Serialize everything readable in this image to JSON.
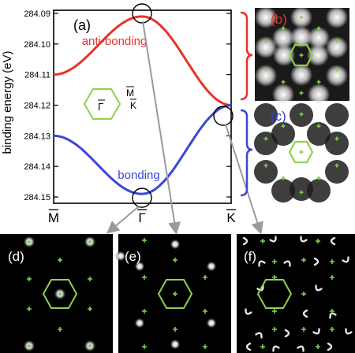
{
  "figure": {
    "panel_a_label": "(a)",
    "panel_b_label": "(b)",
    "panel_c_label": "(c)",
    "panel_d_label": "(d)",
    "panel_e_label": "(e)",
    "panel_f_label": "(f)",
    "inset_labels": {
      "gamma": "Γ",
      "m": "M",
      "k": "K"
    }
  },
  "colors": {
    "anti_bonding": "#e8322a",
    "bonding": "#3b46d6",
    "hexagon": "#8fd14f",
    "marker": "#7bd34a",
    "arrow": "#9a9a9a",
    "label_b": "#d93a2a",
    "label_c": "#3140cc"
  },
  "chart_data": {
    "type": "line",
    "ylabel": "binding energy (eV)",
    "xlabel": "",
    "x_ticks": [
      "M",
      "Γ",
      "K"
    ],
    "y_ticks": [
      284.09,
      284.1,
      284.11,
      284.12,
      284.13,
      284.14,
      284.15
    ],
    "y_tick_labels": [
      "284.09",
      "284.10",
      "284.11",
      "284.12",
      "284.13",
      "284.14",
      "284.15"
    ],
    "ylim": [
      284.09,
      284.15
    ],
    "y_inverted": true,
    "grid": false,
    "series": [
      {
        "name": "anti-bonding",
        "x": [
          "M",
          "Γ",
          "K"
        ],
        "values": [
          284.11,
          284.091,
          284.12
        ]
      },
      {
        "name": "bonding",
        "x": [
          "M",
          "Γ",
          "K"
        ],
        "values": [
          284.13,
          284.149,
          284.12
        ]
      }
    ]
  }
}
